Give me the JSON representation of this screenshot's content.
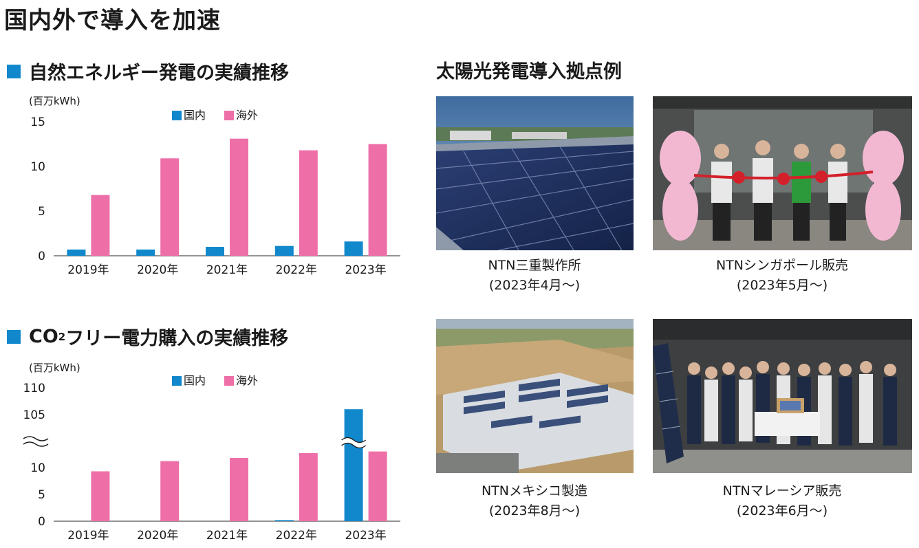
{
  "page": {
    "title": "国内外で導入を加速"
  },
  "sections": {
    "renewable_title": "自然エネルギー発電の実績推移",
    "co2_title_pre": "CO",
    "co2_title_sub": "2",
    "co2_title_post": "フリー電力購入の実績推移",
    "photos_title": "太陽光発電導入拠点例"
  },
  "colors": {
    "domestic": "#1188cc",
    "overseas": "#ee6fa8",
    "square": "#1188cc"
  },
  "chart_data": [
    {
      "type": "bar",
      "unit": "(百万kWh)",
      "categories": [
        "2019年",
        "2020年",
        "2021年",
        "2022年",
        "2023年"
      ],
      "series": [
        {
          "name": "国内",
          "values": [
            0.7,
            0.7,
            1.0,
            1.1,
            1.6
          ]
        },
        {
          "name": "海外",
          "values": [
            6.8,
            10.9,
            13.1,
            11.8,
            12.5
          ]
        }
      ],
      "ylim": [
        0,
        15
      ],
      "yticks": [
        "0",
        "5",
        "10",
        "15"
      ],
      "legend": "top-center"
    },
    {
      "type": "bar",
      "unit": "(百万kWh)",
      "categories": [
        "2019年",
        "2020年",
        "2021年",
        "2022年",
        "2023年"
      ],
      "series": [
        {
          "name": "国内",
          "values": [
            0,
            0,
            0,
            0.2,
            106
          ]
        },
        {
          "name": "海外",
          "values": [
            9.3,
            11.2,
            11.8,
            12.7,
            13.0
          ]
        }
      ],
      "ylim": [
        0,
        110
      ],
      "axis_break": [
        15,
        100
      ],
      "yticks": [
        "0",
        "5",
        "10",
        "105",
        "110"
      ],
      "legend": "top-center"
    }
  ],
  "photos": [
    {
      "name": "NTN三重製作所",
      "period": "(2023年4月〜)",
      "icon": "solar-panel-field"
    },
    {
      "name": "NTNシンガポール販売",
      "period": "(2023年5月〜)",
      "icon": "ribbon-ceremony"
    },
    {
      "name": "NTNメキシコ製造",
      "period": "(2023年8月〜)",
      "icon": "rooftop-solar-aerial"
    },
    {
      "name": "NTNマレーシア販売",
      "period": "(2023年6月〜)",
      "icon": "group-photo"
    }
  ]
}
